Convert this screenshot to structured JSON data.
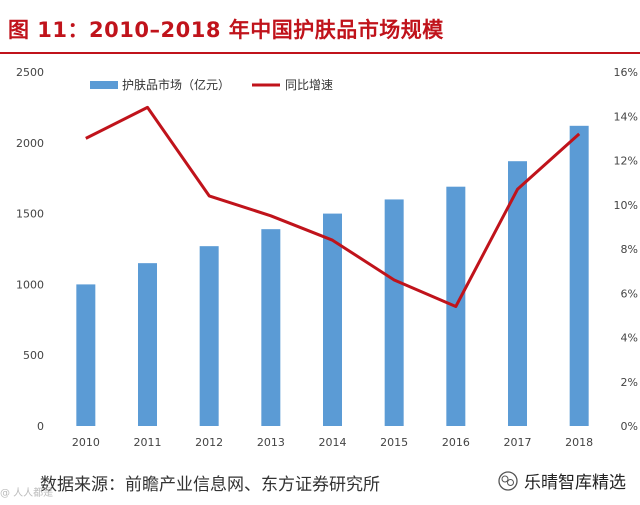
{
  "page": {
    "title": "图 11：2010–2018 年中国护肤品市场规模",
    "source": "数据来源：前瞻产业信息网、东方证券研究所",
    "brand": "乐晴智库精选",
    "watermark": "@ 人人都是"
  },
  "colors": {
    "bar": "#5b9bd5",
    "line": "#c0131b",
    "title": "#c0131b"
  },
  "chart_data": {
    "type": "bar+line",
    "categories": [
      "2010",
      "2011",
      "2012",
      "2013",
      "2014",
      "2015",
      "2016",
      "2017",
      "2018"
    ],
    "series": [
      {
        "name": "护肤品市场（亿元）",
        "type": "bar",
        "axis": "left",
        "values": [
          1000,
          1150,
          1270,
          1390,
          1500,
          1600,
          1690,
          1870,
          2120
        ]
      },
      {
        "name": "同比增速",
        "type": "line",
        "axis": "right",
        "values": [
          13.0,
          14.4,
          10.4,
          9.5,
          8.4,
          6.6,
          5.4,
          10.7,
          13.2
        ]
      }
    ],
    "y_left": {
      "min": 0,
      "max": 2500,
      "ticks": [
        "0",
        "500",
        "1000",
        "1500",
        "2000",
        "2500"
      ]
    },
    "y_right": {
      "min": 0,
      "max": 16,
      "ticks": [
        "0%",
        "2%",
        "4%",
        "6%",
        "8%",
        "10%",
        "12%",
        "14%",
        "16%"
      ]
    },
    "legend": [
      "护肤品市场（亿元）",
      "同比增速"
    ],
    "grid": false
  }
}
